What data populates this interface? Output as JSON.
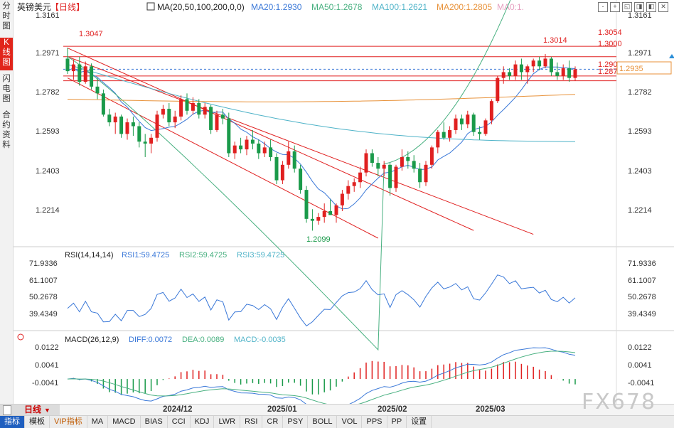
{
  "left_tabs": [
    {
      "label": "分时图",
      "active": false
    },
    {
      "label": "K线图",
      "active": true
    },
    {
      "label": "闪电图",
      "active": false
    },
    {
      "label": "合约资料",
      "active": false
    }
  ],
  "header": {
    "symbol": "英镑美元",
    "period": "【日线】",
    "ma_label": "MA(20,50,100,200,0,0)",
    "ma20": "MA20:1.2930",
    "ma50": "MA50:1.2678",
    "ma100": "MA100:1.2621",
    "ma200": "MA200:1.2805",
    "ma0": "MA0:1."
  },
  "toolbar_buttons": [
    "-",
    "+",
    "◱",
    "◨",
    "◧",
    "✕"
  ],
  "colors": {
    "up": "#e02020",
    "down": "#1a9a4a",
    "ma20": "#3a78d8",
    "ma50": "#48b080",
    "ma100": "#4fb3c8",
    "ma200": "#e8923a",
    "channel": "#e02020"
  },
  "price_axis": {
    "ticks": [
      "1.3161",
      "1.2971",
      "1.2782",
      "1.2593",
      "1.2403",
      "1.2214"
    ]
  },
  "price_annotations": {
    "high_mark": "1.3047",
    "low_mark": "1.2099",
    "recent_high": "1.3014",
    "level_3054": "1.3054",
    "level_3000": "1.3000",
    "level_2900": "1.2900",
    "level_2875": "1.2875",
    "last_price": "1.2935"
  },
  "rsi": {
    "label": "RSI(14,14,14)",
    "rsi1": "RSI1:59.4725",
    "rsi2": "RSI2:59.4725",
    "rsi3": "RSI3:59.4725",
    "ticks": [
      "71.9336",
      "61.1007",
      "50.2678",
      "39.4349"
    ]
  },
  "macd": {
    "label": "MACD(26,12,9)",
    "diff": "DIFF:0.0072",
    "dea": "DEA:0.0089",
    "macd": "MACD:-0.0035",
    "ticks": [
      "0.0122",
      "0.0041",
      "-0.0041"
    ]
  },
  "bottom": {
    "period_button": "日线",
    "dates": [
      "2024/12",
      "2025/01",
      "2025/02",
      "2025/03"
    ]
  },
  "indicator_tabs": [
    "指标",
    "模板",
    "VIP指标",
    "MA",
    "MACD",
    "BIAS",
    "CCI",
    "KDJ",
    "LWR",
    "RSI",
    "CR",
    "PSY",
    "BOLL",
    "VOL",
    "PPS",
    "PP",
    "设置"
  ],
  "watermark": "FX678",
  "chart_data": {
    "type": "candlestick",
    "title": "英镑美元 【日线】",
    "ylim": [
      1.206,
      1.322
    ],
    "x_labels": [
      "2024/12",
      "2025/01",
      "2025/02",
      "2025/03"
    ],
    "candles": [
      [
        1.299,
        1.3047,
        1.291,
        1.2925
      ],
      [
        1.2925,
        1.2985,
        1.288,
        1.296
      ],
      [
        1.296,
        1.3,
        1.285,
        1.287
      ],
      [
        1.287,
        1.2975,
        1.286,
        1.295
      ],
      [
        1.295,
        1.2965,
        1.283,
        1.2845
      ],
      [
        1.2845,
        1.289,
        1.278,
        1.281
      ],
      [
        1.281,
        1.283,
        1.269,
        1.27
      ],
      [
        1.27,
        1.273,
        1.264,
        1.266
      ],
      [
        1.266,
        1.271,
        1.26,
        1.269
      ],
      [
        1.269,
        1.27,
        1.258,
        1.26
      ],
      [
        1.26,
        1.268,
        1.257,
        1.266
      ],
      [
        1.266,
        1.269,
        1.259,
        1.264
      ],
      [
        1.264,
        1.266,
        1.253,
        1.256
      ],
      [
        1.256,
        1.26,
        1.248,
        1.255
      ],
      [
        1.255,
        1.26,
        1.25,
        1.258
      ],
      [
        1.258,
        1.272,
        1.256,
        1.27
      ],
      [
        1.27,
        1.275,
        1.268,
        1.273
      ],
      [
        1.273,
        1.276,
        1.264,
        1.266
      ],
      [
        1.266,
        1.272,
        1.263,
        1.269
      ],
      [
        1.269,
        1.28,
        1.267,
        1.278
      ],
      [
        1.278,
        1.281,
        1.27,
        1.272
      ],
      [
        1.272,
        1.279,
        1.27,
        1.276
      ],
      [
        1.276,
        1.278,
        1.268,
        1.27
      ],
      [
        1.27,
        1.276,
        1.268,
        1.274
      ],
      [
        1.274,
        1.275,
        1.26,
        1.262
      ],
      [
        1.262,
        1.272,
        1.261,
        1.27
      ],
      [
        1.27,
        1.273,
        1.265,
        1.268
      ],
      [
        1.268,
        1.271,
        1.248,
        1.25
      ],
      [
        1.25,
        1.256,
        1.247,
        1.254
      ],
      [
        1.254,
        1.258,
        1.25,
        1.252
      ],
      [
        1.252,
        1.259,
        1.249,
        1.257
      ],
      [
        1.257,
        1.262,
        1.252,
        1.255
      ],
      [
        1.255,
        1.257,
        1.247,
        1.25
      ],
      [
        1.25,
        1.256,
        1.248,
        1.253
      ],
      [
        1.253,
        1.257,
        1.246,
        1.248
      ],
      [
        1.248,
        1.25,
        1.234,
        1.236
      ],
      [
        1.236,
        1.246,
        1.234,
        1.244
      ],
      [
        1.244,
        1.256,
        1.242,
        1.251
      ],
      [
        1.251,
        1.254,
        1.24,
        1.242
      ],
      [
        1.242,
        1.244,
        1.229,
        1.231
      ],
      [
        1.231,
        1.233,
        1.214,
        1.216
      ],
      [
        1.216,
        1.221,
        1.2099,
        1.215
      ],
      [
        1.215,
        1.219,
        1.213,
        1.217
      ],
      [
        1.217,
        1.224,
        1.214,
        1.22
      ],
      [
        1.22,
        1.226,
        1.218,
        1.218
      ],
      [
        1.218,
        1.224,
        1.214,
        1.223
      ],
      [
        1.223,
        1.231,
        1.22,
        1.229
      ],
      [
        1.229,
        1.236,
        1.226,
        1.233
      ],
      [
        1.233,
        1.237,
        1.23,
        1.235
      ],
      [
        1.235,
        1.243,
        1.232,
        1.24
      ],
      [
        1.24,
        1.252,
        1.238,
        1.25
      ],
      [
        1.25,
        1.252,
        1.243,
        1.245
      ],
      [
        1.245,
        1.248,
        1.238,
        1.242
      ],
      [
        1.242,
        1.246,
        1.238,
        1.244
      ],
      [
        1.244,
        1.245,
        1.228,
        1.232
      ],
      [
        1.232,
        1.244,
        1.23,
        1.243
      ],
      [
        1.243,
        1.252,
        1.241,
        1.248
      ],
      [
        1.248,
        1.251,
        1.242,
        1.246
      ],
      [
        1.246,
        1.249,
        1.24,
        1.242
      ],
      [
        1.242,
        1.245,
        1.232,
        1.235
      ],
      [
        1.235,
        1.246,
        1.233,
        1.244
      ],
      [
        1.244,
        1.254,
        1.242,
        1.253
      ],
      [
        1.253,
        1.262,
        1.25,
        1.261
      ],
      [
        1.261,
        1.266,
        1.257,
        1.258
      ],
      [
        1.258,
        1.264,
        1.256,
        1.262
      ],
      [
        1.262,
        1.27,
        1.26,
        1.268
      ],
      [
        1.268,
        1.27,
        1.262,
        1.265
      ],
      [
        1.265,
        1.272,
        1.263,
        1.27
      ],
      [
        1.27,
        1.271,
        1.259,
        1.261
      ],
      [
        1.261,
        1.264,
        1.257,
        1.26
      ],
      [
        1.26,
        1.268,
        1.259,
        1.267
      ],
      [
        1.267,
        1.278,
        1.265,
        1.277
      ],
      [
        1.277,
        1.29,
        1.276,
        1.289
      ],
      [
        1.289,
        1.295,
        1.286,
        1.292
      ],
      [
        1.292,
        1.294,
        1.288,
        1.29
      ],
      [
        1.29,
        1.298,
        1.288,
        1.296
      ],
      [
        1.296,
        1.299,
        1.288,
        1.292
      ],
      [
        1.292,
        1.296,
        1.286,
        1.295
      ],
      [
        1.295,
        1.299,
        1.292,
        1.298
      ],
      [
        1.298,
        1.3,
        1.293,
        1.295
      ],
      [
        1.295,
        1.3014,
        1.294,
        1.299
      ],
      [
        1.299,
        1.3,
        1.29,
        1.292
      ],
      [
        1.292,
        1.297,
        1.288,
        1.29
      ],
      [
        1.29,
        1.296,
        1.288,
        1.294
      ],
      [
        1.294,
        1.298,
        1.287,
        1.289
      ],
      [
        1.289,
        1.295,
        1.2875,
        1.2935
      ]
    ],
    "ma200_start": 1.278,
    "ma200_end": 1.2805
  }
}
